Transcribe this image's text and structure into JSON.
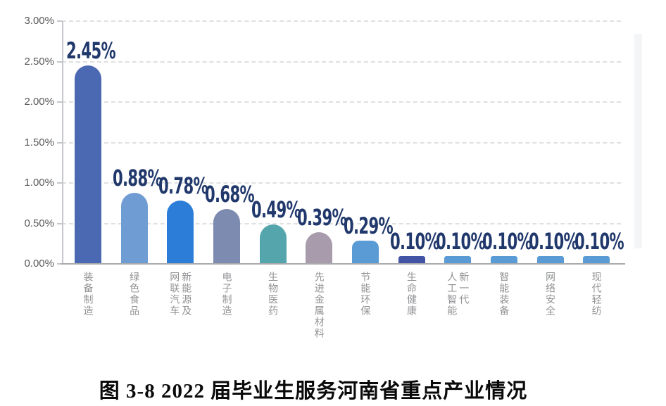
{
  "figure": {
    "caption": "图 3-8  2022 届毕业生服务河南省重点产业情况"
  },
  "chart_data": {
    "type": "bar",
    "title": "",
    "xlabel": "",
    "ylabel": "",
    "categories": [
      "装备制造",
      "绿色食品",
      "新能源及网联汽车",
      "电子制造",
      "生物医药",
      "先进金属材料",
      "节能环保",
      "生命健康",
      "新一代人工智能",
      "智能装备",
      "网络安全",
      "现代轻纺"
    ],
    "category_lines": [
      [
        "装备制造"
      ],
      [
        "绿色食品"
      ],
      [
        "新能源及",
        "网联汽车"
      ],
      [
        "电子制造"
      ],
      [
        "生物医药"
      ],
      [
        "先进金属材料"
      ],
      [
        "节能环保"
      ],
      [
        "生命健康"
      ],
      [
        "新一代",
        "人工智能"
      ],
      [
        "智能装备"
      ],
      [
        "网络安全"
      ],
      [
        "现代轻纺"
      ]
    ],
    "values": [
      2.45,
      0.88,
      0.78,
      0.68,
      0.49,
      0.39,
      0.29,
      0.1,
      0.1,
      0.1,
      0.1,
      0.1
    ],
    "data_labels": [
      "2.45%",
      "0.88%",
      "0.78%",
      "0.68%",
      "0.49%",
      "0.39%",
      "0.29%",
      "0.10%",
      "0.10%",
      "0.10%",
      "0.10%",
      "0.10%"
    ],
    "bar_colors": [
      "#4a69b2",
      "#6f9cd3",
      "#2b7dd8",
      "#7e8bb0",
      "#55a6ac",
      "#a79bac",
      "#5b9bd5",
      "#4454a4",
      "#5b9bd5",
      "#5b9bd5",
      "#5b9bd5",
      "#5b9bd5"
    ],
    "ylim": [
      0,
      3
    ],
    "y_tick_values": [
      0,
      0.5,
      1,
      1.5,
      2,
      2.5,
      3
    ],
    "y_tick_labels": [
      "0.00%",
      "0.50%",
      "1.00%",
      "1.50%",
      "2.00%",
      "2.50%",
      "3.00%"
    ],
    "grid": "horizontal dashed, on",
    "legend": "none",
    "colors": {
      "data_label": "#20386b",
      "axis_text": "#595959",
      "category_text": "#919294",
      "gridline": "#dfe0e2",
      "axis_line": "#a8aaad"
    }
  }
}
